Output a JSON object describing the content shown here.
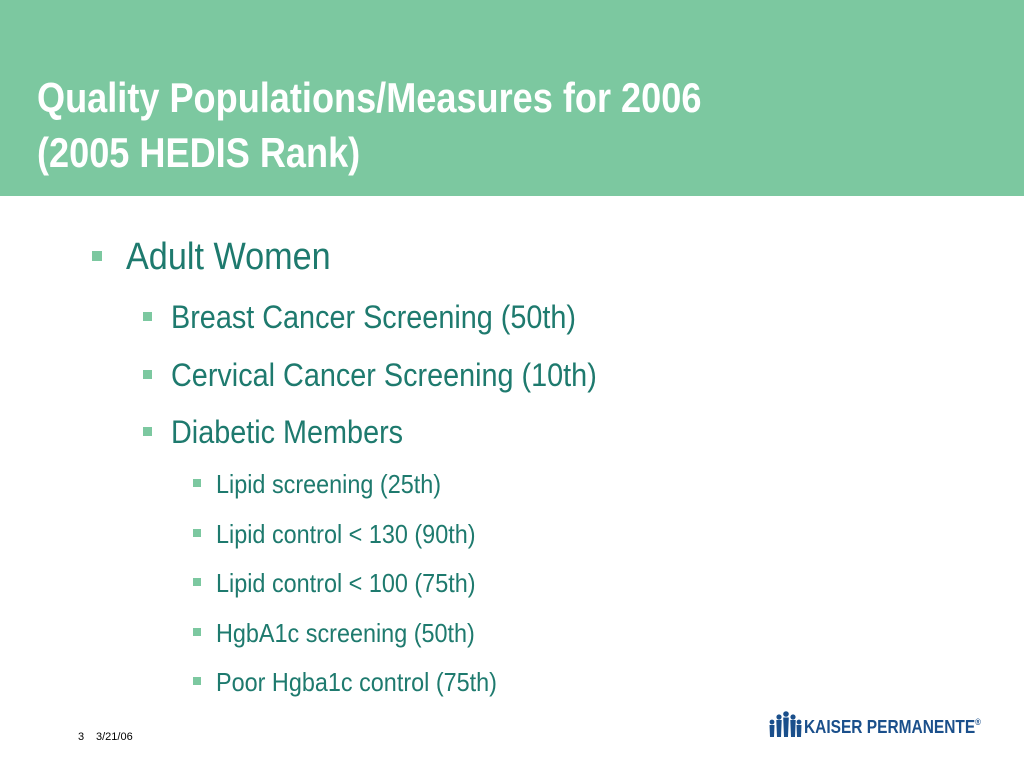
{
  "slide": {
    "title_line1": "Quality Populations/Measures for 2006",
    "title_line2": "(2005 HEDIS Rank)",
    "items": [
      {
        "text": "Adult Women",
        "level": 1
      },
      {
        "text": "Breast Cancer Screening (50th)",
        "level": 2
      },
      {
        "text": "Cervical Cancer Screening (10th)",
        "level": 2
      },
      {
        "text": "Diabetic Members",
        "level": 2
      },
      {
        "text": "Lipid screening (25th)",
        "level": 3
      },
      {
        "text": "Lipid control < 130 (90th)",
        "level": 3
      },
      {
        "text": "Lipid control < 100 (75th)",
        "level": 3
      },
      {
        "text": "HgbA1c screening (50th)",
        "level": 3
      },
      {
        "text": "Poor Hgba1c control (75th)",
        "level": 3
      }
    ],
    "footer": {
      "page_number": "3",
      "date": "3/21/06"
    },
    "logo": {
      "text": "KAISER PERMANENTE",
      "registered": "®"
    }
  },
  "colors": {
    "header_bg": "#7cc8a0",
    "title_text": "#ffffff",
    "body_text": "#1e7a6e",
    "bullet": "#7cc8a0",
    "logo": "#1a4f8b"
  }
}
